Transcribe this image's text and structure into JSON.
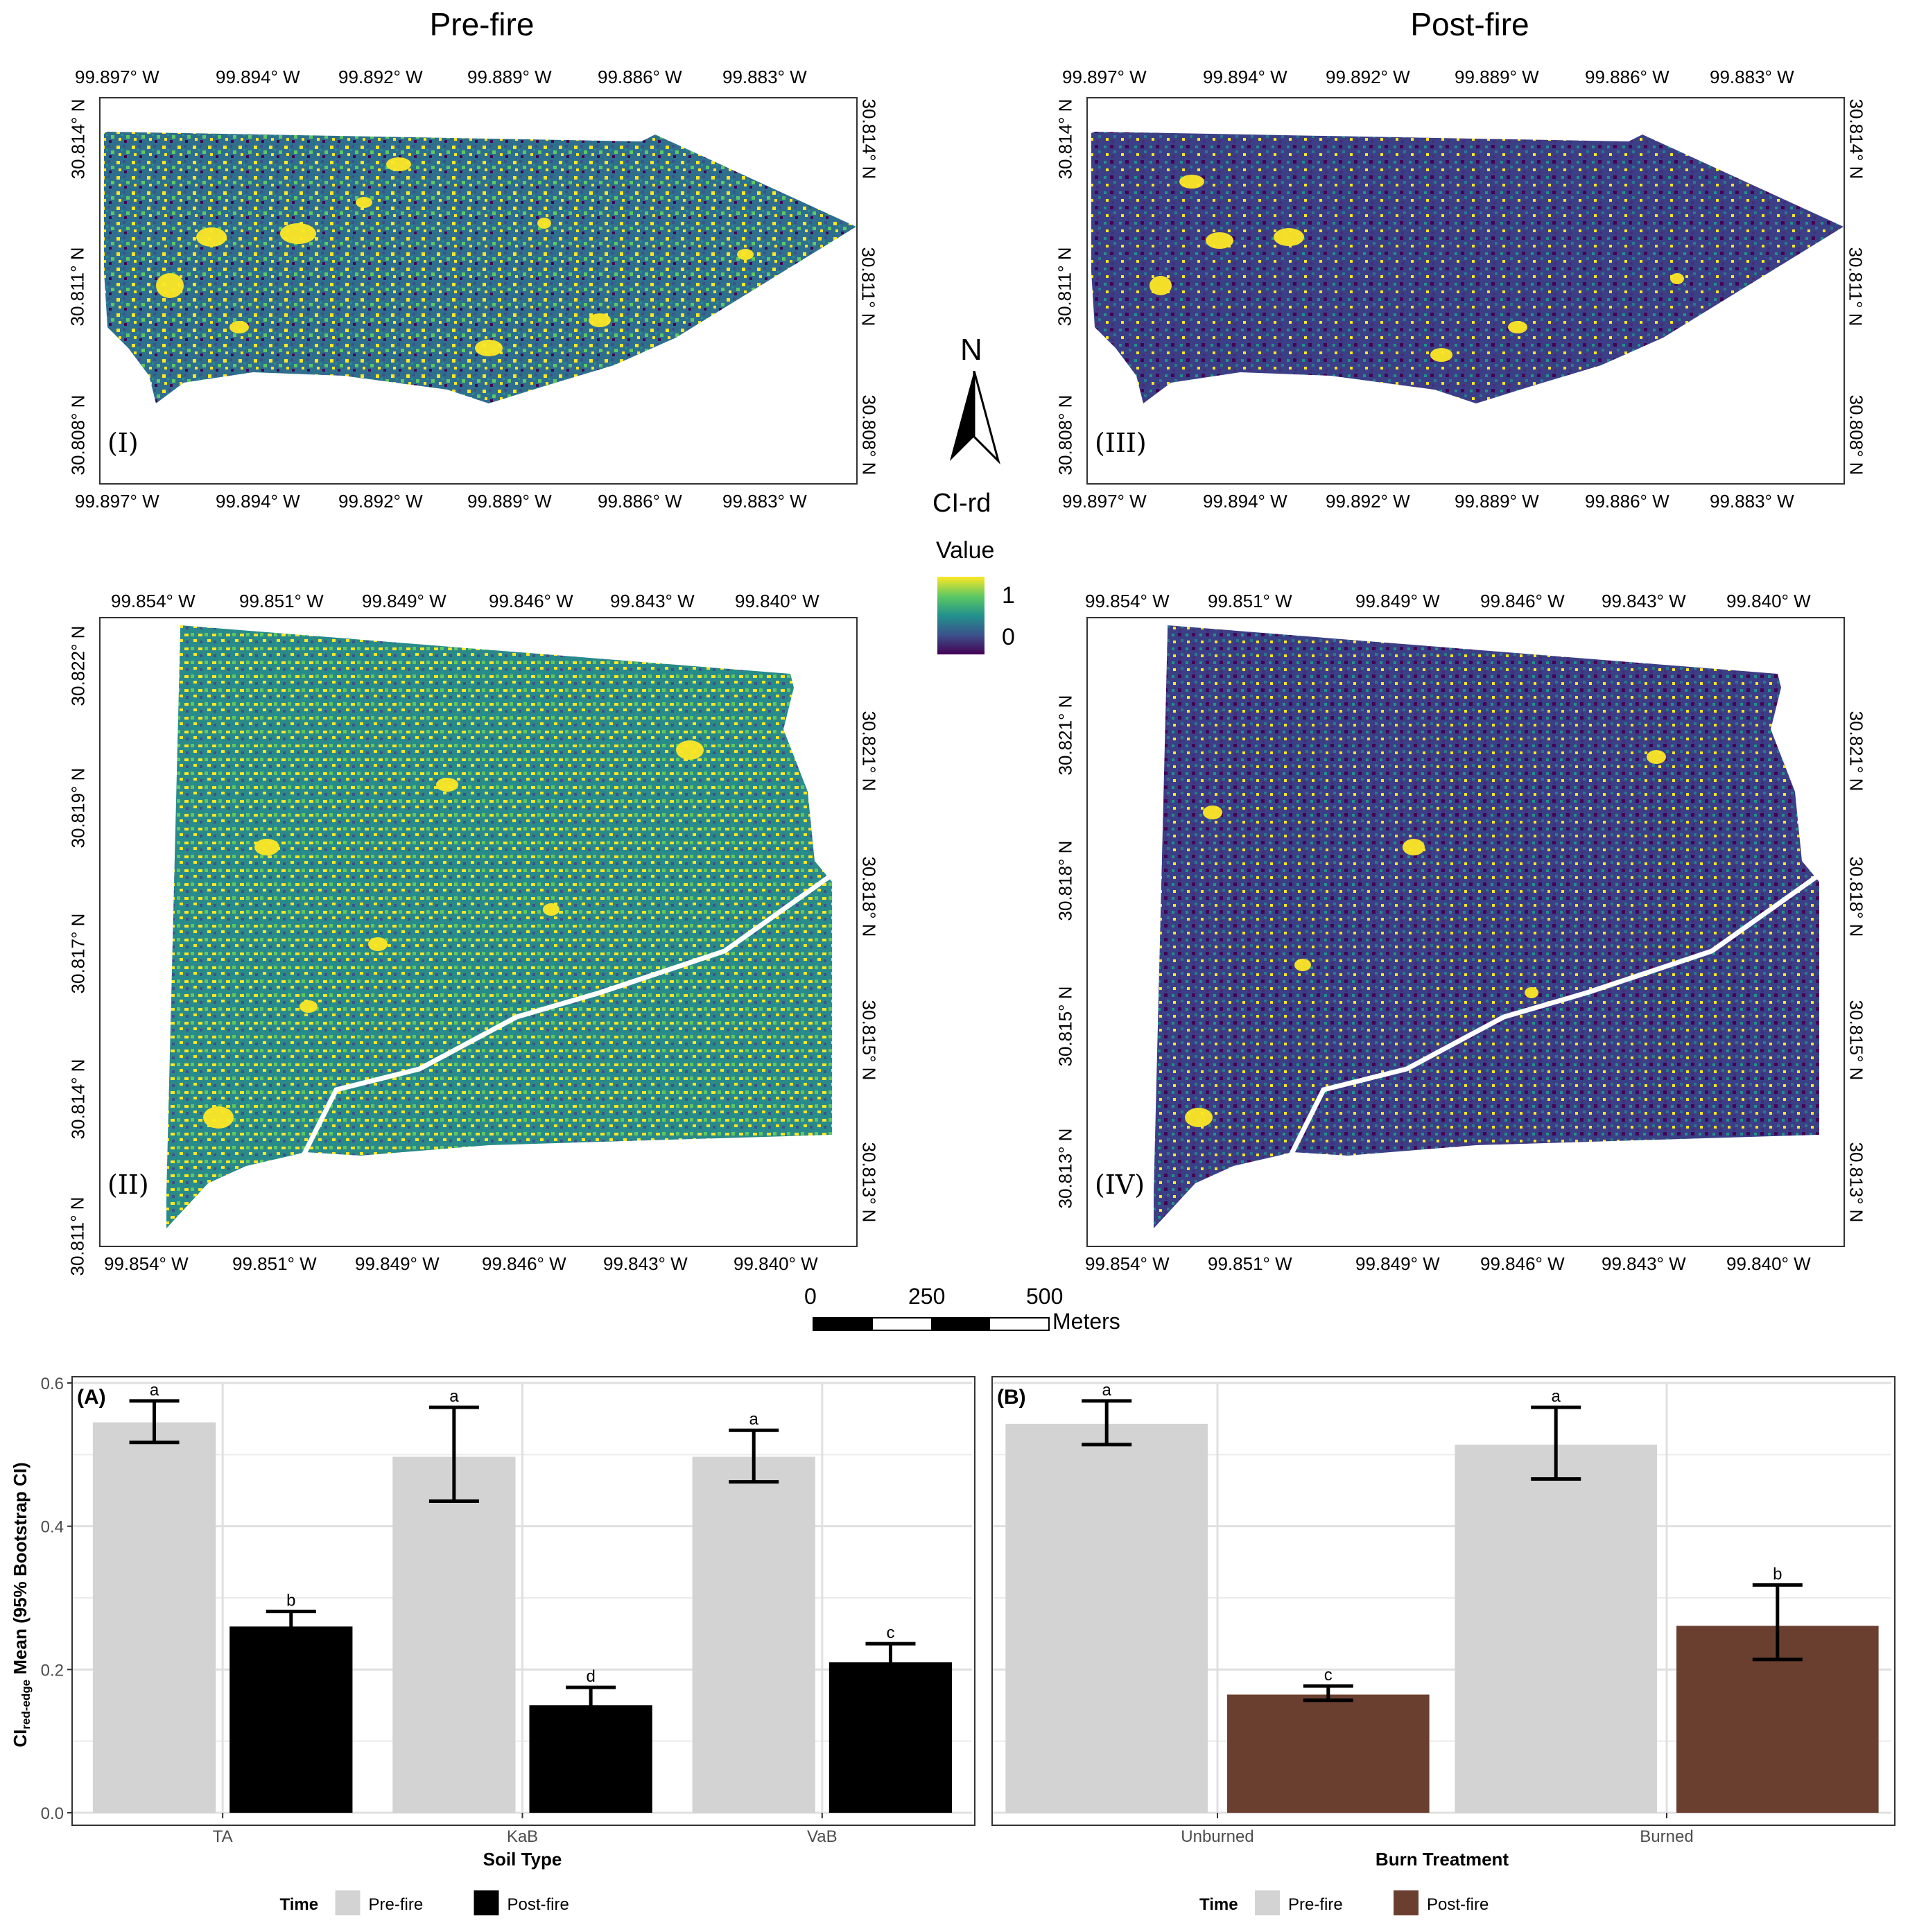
{
  "titles": {
    "pre": "Pre-fire",
    "post": "Post-fire"
  },
  "panel_labels": {
    "p1": "(I)",
    "p2": "(II)",
    "p3": "(III)",
    "p4": "(IV)"
  },
  "map_ticks": {
    "top_lon": [
      "99.897° W",
      "99.894° W",
      "99.892° W",
      "99.889° W",
      "99.886° W",
      "99.883° W"
    ],
    "top_lat": [
      "30.814° N",
      "30.811° N",
      "30.808° N"
    ],
    "bottom_lon": [
      "99.854° W",
      "99.851° W",
      "99.849° W",
      "99.846° W",
      "99.843° W",
      "99.840° W"
    ],
    "bottom_lat_left": [
      "30.822° N",
      "30.819° N",
      "30.817° N",
      "30.814° N",
      "30.811° N"
    ],
    "bottom_lat_right": [
      "30.821° N",
      "30.818° N",
      "30.815° N",
      "30.813° N"
    ]
  },
  "legend": {
    "north": "N",
    "index_label": "CI-rd",
    "value_label": "Value",
    "max_label": "1",
    "min_label": "0",
    "colors": [
      "#fde725",
      "#5ec962",
      "#21918c",
      "#3b528b",
      "#440154"
    ]
  },
  "scale_bar": {
    "labels": [
      "0",
      "250",
      "500"
    ],
    "unit": "Meters"
  },
  "chart_data": [
    {
      "type": "bar",
      "panel_label": "(A)",
      "categories": [
        "TA",
        "KaB",
        "VaB"
      ],
      "xlabel": "Soil Type",
      "ylabel_main": "CI",
      "ylabel_sub": "red-edge",
      "ylabel_rest": " Mean (95% Bootstrap CI)",
      "ylim": [
        0,
        0.6
      ],
      "yticks": [
        0.0,
        0.2,
        0.4,
        0.6
      ],
      "ytick_labels": [
        "0.0",
        "0.2",
        "0.4",
        "0.6"
      ],
      "series": [
        {
          "name": "Pre-fire",
          "color": "#d3d3d3",
          "values": [
            0.545,
            0.497,
            0.497
          ],
          "ci_low": [
            0.517,
            0.435,
            0.462
          ],
          "ci_high": [
            0.575,
            0.566,
            0.534
          ],
          "letters": [
            "a",
            "a",
            "a"
          ]
        },
        {
          "name": "Post-fire",
          "color": "#000000",
          "values": [
            0.26,
            0.15,
            0.21
          ],
          "ci_low": [
            0.24,
            0.128,
            0.19
          ],
          "ci_high": [
            0.281,
            0.175,
            0.236
          ],
          "letters": [
            "b",
            "d",
            "c"
          ]
        }
      ],
      "legend_title": "Time",
      "grid": true
    },
    {
      "type": "bar",
      "panel_label": "(B)",
      "categories": [
        "Unburned",
        "Burned"
      ],
      "xlabel": "Burn Treatment",
      "ylim": [
        0,
        0.6
      ],
      "yticks": [
        0.0,
        0.2,
        0.4,
        0.6
      ],
      "series": [
        {
          "name": "Pre-fire",
          "color": "#d3d3d3",
          "values": [
            0.543,
            0.514
          ],
          "ci_low": [
            0.514,
            0.466
          ],
          "ci_high": [
            0.575,
            0.566
          ],
          "letters": [
            "a",
            "a"
          ]
        },
        {
          "name": "Post-fire",
          "color": "#6b3f30",
          "values": [
            0.165,
            0.261
          ],
          "ci_low": [
            0.157,
            0.214
          ],
          "ci_high": [
            0.177,
            0.318
          ],
          "letters": [
            "c",
            "b"
          ]
        }
      ],
      "legend_title": "Time",
      "grid": true
    }
  ]
}
